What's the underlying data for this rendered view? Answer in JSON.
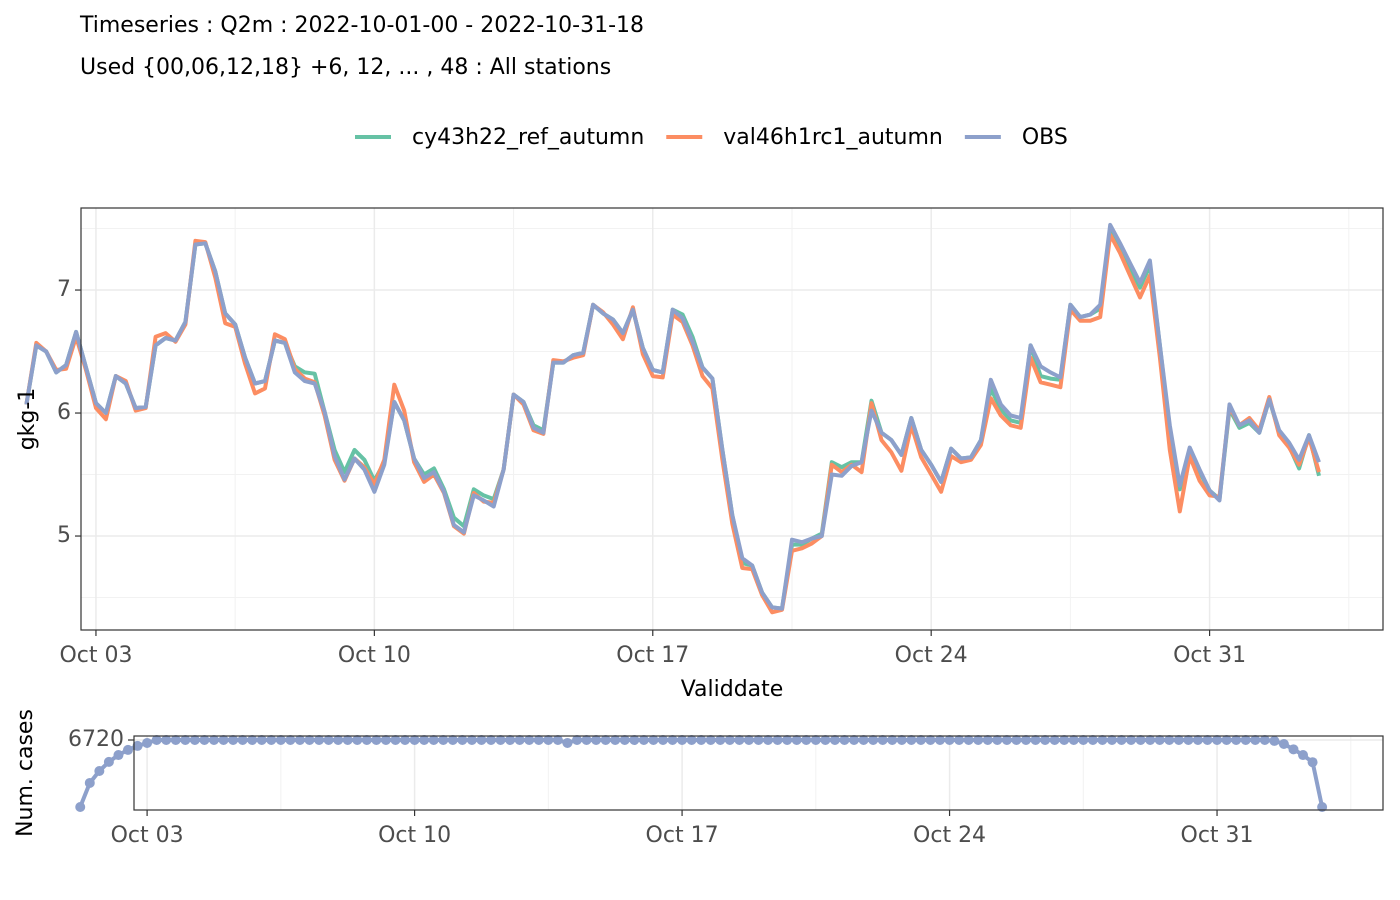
{
  "chart_data": [
    {
      "type": "line",
      "title": "Timeseries : Q2m : 2022-10-01-00 - 2022-10-31-18",
      "subtitle": "Used {00,06,12,18} +6, 12, ... , 48 : All stations",
      "xlabel": "Validdate",
      "ylabel": "gkg-1",
      "xlim": [
        2.624,
        35.36
      ],
      "xticks": [
        {
          "value": 3,
          "label": "Oct 03"
        },
        {
          "value": 10,
          "label": "Oct 10"
        },
        {
          "value": 17,
          "label": "Oct 17"
        },
        {
          "value": 24,
          "label": "Oct 24"
        },
        {
          "value": 31,
          "label": "Oct 31"
        }
      ],
      "ylim": [
        4.236,
        7.667
      ],
      "yticks": [
        5,
        6,
        7
      ],
      "grid": true,
      "legend": "top",
      "x": [
        1.25,
        1.5,
        1.75,
        2,
        2.25,
        2.5,
        2.75,
        3,
        3.25,
        3.5,
        3.75,
        4,
        4.25,
        4.5,
        4.75,
        5,
        5.25,
        5.5,
        5.75,
        6,
        6.25,
        6.5,
        6.75,
        7,
        7.25,
        7.5,
        7.75,
        8,
        8.25,
        8.5,
        8.75,
        9,
        9.25,
        9.5,
        9.75,
        10,
        10.25,
        10.5,
        10.75,
        11,
        11.25,
        11.5,
        11.75,
        12,
        12.25,
        12.5,
        12.75,
        13,
        13.25,
        13.5,
        13.75,
        14,
        14.25,
        14.5,
        14.75,
        15,
        15.25,
        15.5,
        15.75,
        16,
        16.25,
        16.5,
        16.75,
        17,
        17.25,
        17.5,
        17.75,
        18,
        18.25,
        18.5,
        18.75,
        19,
        19.25,
        19.5,
        19.75,
        20,
        20.25,
        20.5,
        20.75,
        21,
        21.25,
        21.5,
        21.75,
        22,
        22.25,
        22.5,
        22.75,
        23,
        23.25,
        23.5,
        23.75,
        24,
        24.25,
        24.5,
        24.75,
        25,
        25.25,
        25.5,
        25.75,
        26,
        26.25,
        26.5,
        26.75,
        27,
        27.25,
        27.5,
        27.75,
        28,
        28.25,
        28.5,
        28.75,
        29,
        29.25,
        29.5,
        29.75,
        30,
        30.25,
        30.5,
        30.75,
        31,
        31.25,
        31.5,
        31.75,
        32,
        32.25,
        32.5,
        32.75,
        33,
        33.25,
        33.5,
        33.75
      ],
      "series": [
        {
          "name": "cy43h22_ref_autumn",
          "color": "#66c2a5",
          "values": [
            6.07,
            6.55,
            6.5,
            6.33,
            6.39,
            6.66,
            6.37,
            6.08,
            6.0,
            6.3,
            6.24,
            6.04,
            6.05,
            6.55,
            6.61,
            6.59,
            6.74,
            7.37,
            7.38,
            7.15,
            6.81,
            6.72,
            6.45,
            6.24,
            6.26,
            6.59,
            6.57,
            6.38,
            6.33,
            6.32,
            6.01,
            5.7,
            5.52,
            5.7,
            5.62,
            5.45,
            5.6,
            6.09,
            5.94,
            5.63,
            5.5,
            5.55,
            5.38,
            5.15,
            5.08,
            5.38,
            5.33,
            5.3,
            5.54,
            6.15,
            6.09,
            5.9,
            5.86,
            6.41,
            6.41,
            6.47,
            6.49,
            6.88,
            6.81,
            6.76,
            6.65,
            6.84,
            6.53,
            6.35,
            6.33,
            6.84,
            6.8,
            6.62,
            6.37,
            6.28,
            5.7,
            5.17,
            4.78,
            4.76,
            4.54,
            4.42,
            4.41,
            4.93,
            4.93,
            4.98,
            5.02,
            5.6,
            5.56,
            5.6,
            5.6,
            6.1,
            5.84,
            5.78,
            5.66,
            5.96,
            5.7,
            5.58,
            5.44,
            5.71,
            5.63,
            5.64,
            5.78,
            6.2,
            6.03,
            5.94,
            5.92,
            6.55,
            6.3,
            6.28,
            6.27,
            6.88,
            6.78,
            6.8,
            6.85,
            7.5,
            7.34,
            7.18,
            7.02,
            7.2,
            6.55,
            5.85,
            5.38,
            5.7,
            5.52,
            5.37,
            5.3,
            6.03,
            5.88,
            5.92,
            5.84,
            6.11,
            5.84,
            5.73,
            5.55,
            5.82,
            5.49
          ]
        },
        {
          "name": "val46h1rc1_autumn",
          "color": "#fc8d62",
          "values": [
            6.07,
            6.57,
            6.5,
            6.35,
            6.36,
            6.62,
            6.35,
            6.04,
            5.95,
            6.3,
            6.26,
            6.02,
            6.04,
            6.62,
            6.65,
            6.58,
            6.72,
            7.4,
            7.39,
            7.1,
            6.73,
            6.7,
            6.4,
            6.16,
            6.2,
            6.64,
            6.6,
            6.36,
            6.28,
            6.25,
            5.98,
            5.62,
            5.45,
            5.63,
            5.56,
            5.42,
            5.62,
            6.23,
            6.02,
            5.6,
            5.44,
            5.5,
            5.35,
            5.08,
            5.02,
            5.35,
            5.28,
            5.27,
            5.54,
            6.15,
            6.07,
            5.86,
            5.83,
            6.43,
            6.42,
            6.45,
            6.47,
            6.88,
            6.82,
            6.72,
            6.6,
            6.86,
            6.48,
            6.3,
            6.29,
            6.8,
            6.74,
            6.55,
            6.3,
            6.2,
            5.62,
            5.1,
            4.74,
            4.73,
            4.52,
            4.38,
            4.4,
            4.88,
            4.9,
            4.94,
            5.0,
            5.58,
            5.52,
            5.58,
            5.52,
            6.08,
            5.78,
            5.68,
            5.53,
            5.9,
            5.64,
            5.5,
            5.36,
            5.65,
            5.6,
            5.62,
            5.74,
            6.12,
            5.98,
            5.9,
            5.88,
            6.45,
            6.25,
            6.23,
            6.21,
            6.84,
            6.75,
            6.75,
            6.78,
            7.45,
            7.3,
            7.12,
            6.94,
            7.12,
            6.45,
            5.7,
            5.2,
            5.65,
            5.45,
            5.33,
            5.32,
            6.05,
            5.9,
            5.96,
            5.86,
            6.13,
            5.82,
            5.72,
            5.58,
            5.8,
            5.52
          ]
        },
        {
          "name": "OBS",
          "color": "#8da0cb",
          "values": [
            6.07,
            6.55,
            6.5,
            6.33,
            6.39,
            6.66,
            6.37,
            6.08,
            6.0,
            6.3,
            6.24,
            6.04,
            6.05,
            6.55,
            6.61,
            6.59,
            6.74,
            7.37,
            7.38,
            7.15,
            6.81,
            6.72,
            6.45,
            6.24,
            6.26,
            6.59,
            6.57,
            6.33,
            6.26,
            6.24,
            6.01,
            5.65,
            5.46,
            5.63,
            5.54,
            5.36,
            5.58,
            6.09,
            5.94,
            5.63,
            5.47,
            5.52,
            5.36,
            5.09,
            5.03,
            5.33,
            5.29,
            5.24,
            5.54,
            6.15,
            6.09,
            5.88,
            5.84,
            6.41,
            6.41,
            6.47,
            6.49,
            6.88,
            6.81,
            6.76,
            6.65,
            6.84,
            6.53,
            6.35,
            6.33,
            6.84,
            6.77,
            6.58,
            6.37,
            6.28,
            5.7,
            5.17,
            4.82,
            4.76,
            4.54,
            4.42,
            4.41,
            4.97,
            4.95,
            4.98,
            5.0,
            5.5,
            5.49,
            5.57,
            5.6,
            6.02,
            5.84,
            5.78,
            5.66,
            5.96,
            5.7,
            5.58,
            5.44,
            5.71,
            5.63,
            5.64,
            5.78,
            6.27,
            6.07,
            5.98,
            5.96,
            6.55,
            6.38,
            6.33,
            6.29,
            6.88,
            6.78,
            6.8,
            6.88,
            7.53,
            7.38,
            7.22,
            7.06,
            7.24,
            6.55,
            5.9,
            5.41,
            5.72,
            5.54,
            5.37,
            5.29,
            6.07,
            5.9,
            5.94,
            5.84,
            6.11,
            5.86,
            5.76,
            5.62,
            5.82,
            5.6
          ]
        }
      ]
    },
    {
      "type": "line",
      "ylabel": "Num. cases",
      "markers": true,
      "xlim": [
        2.657,
        35.343
      ],
      "xticks": [
        {
          "value": 3,
          "label": "Oct 03"
        },
        {
          "value": 10,
          "label": "Oct 10"
        },
        {
          "value": 17,
          "label": "Oct 17"
        },
        {
          "value": 24,
          "label": "Oct 24"
        },
        {
          "value": 31,
          "label": "Oct 31"
        }
      ],
      "ylim": [
        577,
        7071
      ],
      "yticks": [
        6720
      ],
      "grid": true,
      "x": [
        1.25,
        1.5,
        1.75,
        2,
        2.25,
        2.5,
        2.75,
        3,
        3.25,
        3.5,
        3.75,
        4,
        4.25,
        4.5,
        4.75,
        5,
        5.25,
        5.5,
        5.75,
        6,
        6.25,
        6.5,
        6.75,
        7,
        7.25,
        7.5,
        7.75,
        8,
        8.25,
        8.5,
        8.75,
        9,
        9.25,
        9.5,
        9.75,
        10,
        10.25,
        10.5,
        10.75,
        11,
        11.25,
        11.5,
        11.75,
        12,
        12.25,
        12.5,
        12.75,
        13,
        13.25,
        13.5,
        13.75,
        14,
        14.25,
        14.5,
        14.75,
        15,
        15.25,
        15.5,
        15.75,
        16,
        16.25,
        16.5,
        16.75,
        17,
        17.25,
        17.5,
        17.75,
        18,
        18.25,
        18.5,
        18.75,
        19,
        19.25,
        19.5,
        19.75,
        20,
        20.25,
        20.5,
        20.75,
        21,
        21.25,
        21.5,
        21.75,
        22,
        22.25,
        22.5,
        22.75,
        23,
        23.25,
        23.5,
        23.75,
        24,
        24.25,
        24.5,
        24.75,
        25,
        25.25,
        25.5,
        25.75,
        26,
        26.25,
        26.5,
        26.75,
        27,
        27.25,
        27.5,
        27.75,
        28,
        28.25,
        28.5,
        28.75,
        29,
        29.25,
        29.5,
        29.75,
        30,
        30.25,
        30.5,
        30.75,
        31,
        31.25,
        31.5,
        31.75,
        32,
        32.25,
        32.5,
        32.75,
        33,
        33.25,
        33.5,
        33.75
      ],
      "series": [
        {
          "name": "OBS",
          "color": "#8da0cb",
          "values": [
            840,
            2950,
            4000,
            4800,
            5400,
            5850,
            6200,
            6460,
            6720,
            6720,
            6720,
            6720,
            6720,
            6720,
            6720,
            6720,
            6720,
            6720,
            6720,
            6720,
            6720,
            6720,
            6720,
            6720,
            6720,
            6720,
            6720,
            6720,
            6720,
            6720,
            6720,
            6720,
            6720,
            6720,
            6720,
            6720,
            6720,
            6720,
            6720,
            6720,
            6720,
            6720,
            6720,
            6720,
            6720,
            6720,
            6720,
            6720,
            6720,
            6720,
            6720,
            6460,
            6720,
            6720,
            6720,
            6720,
            6720,
            6720,
            6720,
            6720,
            6720,
            6720,
            6720,
            6720,
            6720,
            6720,
            6720,
            6720,
            6720,
            6720,
            6720,
            6720,
            6720,
            6720,
            6720,
            6720,
            6720,
            6720,
            6720,
            6720,
            6720,
            6720,
            6720,
            6720,
            6720,
            6720,
            6720,
            6720,
            6720,
            6720,
            6720,
            6720,
            6720,
            6720,
            6720,
            6720,
            6720,
            6720,
            6720,
            6720,
            6720,
            6720,
            6720,
            6720,
            6720,
            6720,
            6720,
            6720,
            6720,
            6720,
            6720,
            6720,
            6720,
            6720,
            6720,
            6720,
            6720,
            6720,
            6720,
            6720,
            6720,
            6720,
            6720,
            6720,
            6720,
            6640,
            6370,
            5900,
            5400,
            4770,
            840
          ]
        }
      ]
    }
  ]
}
